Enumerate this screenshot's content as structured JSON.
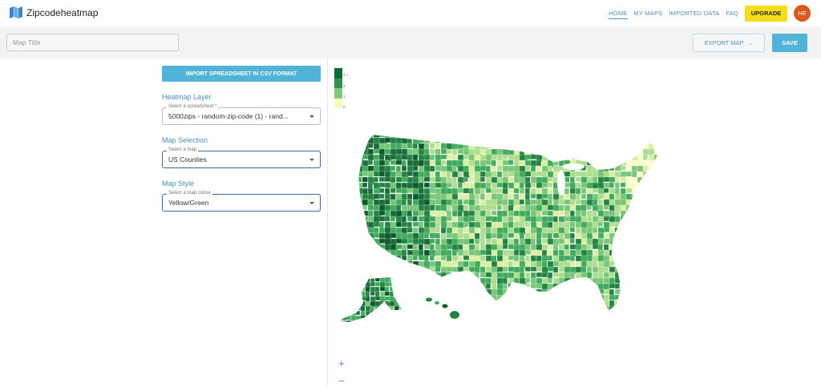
{
  "app": {
    "brand": "Zipcodeheatmap"
  },
  "nav": {
    "links": [
      {
        "label": "HOME",
        "active": true
      },
      {
        "label": "MY MAPS",
        "active": false
      },
      {
        "label": "IMPORTED DATA",
        "active": false
      },
      {
        "label": "FAQ",
        "active": false
      }
    ],
    "upgrade_label": "UPGRADE",
    "avatar_initials": "HE"
  },
  "toolbar": {
    "title_placeholder": "Map Title",
    "title_value": "",
    "export_label": "EXPORT MAP",
    "save_label": "SAVE"
  },
  "panel": {
    "import_label": "IMPORT SPREADSHEET IN CSV FORMAT",
    "heatmap": {
      "section": "Heatmap Layer",
      "field_label": "Select a spreadsheet *",
      "value": "5000zips - random-zip-code (1) - rand..."
    },
    "map_selection": {
      "section": "Map Selection",
      "field_label": "Select a map",
      "value": "US Counties"
    },
    "map_style": {
      "section": "Map Style",
      "field_label": "Select a map colour",
      "value": "Yellow/Green"
    }
  },
  "legend": {
    "labels": [
      "4 +",
      "2",
      "1",
      "0"
    ],
    "colors": [
      "#0b6b34",
      "#2e9450",
      "#7fc97f",
      "#f7fcb9"
    ]
  },
  "map": {
    "palette": [
      "#fbfdc8",
      "#d9f0a3",
      "#addd8e",
      "#78c679",
      "#41ab5d",
      "#238443",
      "#1a6d3a",
      "#0b5a2c"
    ],
    "zoom_in": "+",
    "zoom_out": "−"
  }
}
